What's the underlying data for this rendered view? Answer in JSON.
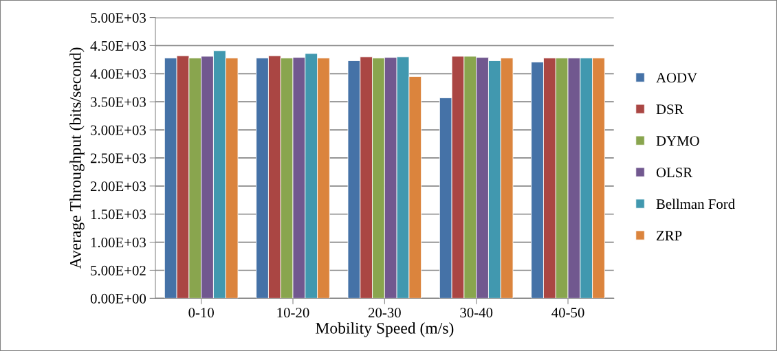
{
  "chart_data": {
    "type": "bar",
    "xlabel": "Mobility Speed (m/s)",
    "ylabel": "Average Throughput (bits/second)",
    "categories": [
      "0-10",
      "10-20",
      "20-30",
      "30-40",
      "40-50"
    ],
    "series": [
      {
        "name": "AODV",
        "color": "#4572a7",
        "values": [
          4280,
          4280,
          4230,
          3570,
          4210
        ]
      },
      {
        "name": "DSR",
        "color": "#aa4643",
        "values": [
          4320,
          4320,
          4300,
          4310,
          4280
        ]
      },
      {
        "name": "DYMO",
        "color": "#89a54e",
        "values": [
          4280,
          4280,
          4280,
          4310,
          4280
        ]
      },
      {
        "name": "OLSR",
        "color": "#71588f",
        "values": [
          4310,
          4290,
          4290,
          4290,
          4280
        ]
      },
      {
        "name": "Bellman Ford",
        "color": "#4198af",
        "values": [
          4410,
          4360,
          4300,
          4230,
          4280
        ]
      },
      {
        "name": "ZRP",
        "color": "#db843d",
        "values": [
          4280,
          4280,
          3950,
          4280,
          4280
        ]
      }
    ],
    "ylim": [
      0,
      5000
    ],
    "yticks": [
      {
        "value": 0,
        "label": "0.00E+00"
      },
      {
        "value": 500,
        "label": "5.00E+02"
      },
      {
        "value": 1000,
        "label": "1.00E+03"
      },
      {
        "value": 1500,
        "label": "1.50E+03"
      },
      {
        "value": 2000,
        "label": "2.00E+03"
      },
      {
        "value": 2500,
        "label": "2.50E+03"
      },
      {
        "value": 3000,
        "label": "3.00E+03"
      },
      {
        "value": 3500,
        "label": "3.50E+03"
      },
      {
        "value": 4000,
        "label": "4.00E+03"
      },
      {
        "value": 4500,
        "label": "4.50E+03"
      },
      {
        "value": 5000,
        "label": "5.00E+03"
      }
    ],
    "grid": "y",
    "legend": "right"
  }
}
